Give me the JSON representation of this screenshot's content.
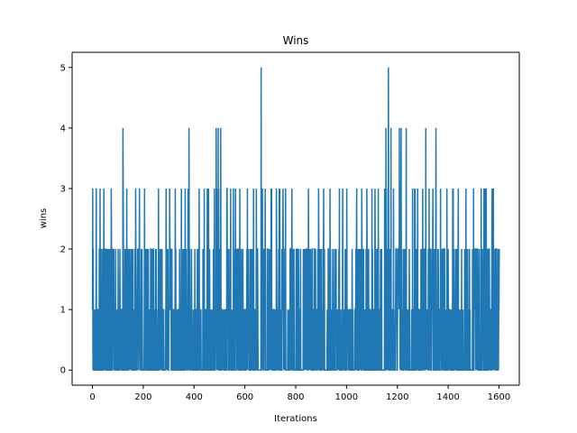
{
  "chart_data": {
    "type": "line",
    "title": "Wins",
    "xlabel": "Iterations",
    "ylabel": "wins",
    "xlim": [
      -80,
      1680
    ],
    "ylim": [
      -0.25,
      5.25
    ],
    "x_ticks": [
      0,
      200,
      400,
      600,
      800,
      1000,
      1200,
      1400,
      1600
    ],
    "y_ticks": [
      0,
      1,
      2,
      3,
      4,
      5
    ],
    "grid": false,
    "legend": "none",
    "series": [
      {
        "color": "#1f77b4",
        "x": [
          0,
          1601
        ],
        "y_range": [
          0,
          5
        ],
        "peaks": [
          {
            "x": 1,
            "y": 3
          },
          {
            "x": 3,
            "y": 2
          },
          {
            "x": 15,
            "y": 3
          },
          {
            "x": 30,
            "y": 3
          },
          {
            "x": 45,
            "y": 3
          },
          {
            "x": 120,
            "y": 4
          },
          {
            "x": 135,
            "y": 3
          },
          {
            "x": 170,
            "y": 3
          },
          {
            "x": 185,
            "y": 3
          },
          {
            "x": 205,
            "y": 3
          },
          {
            "x": 290,
            "y": 3
          },
          {
            "x": 350,
            "y": 3
          },
          {
            "x": 365,
            "y": 3
          },
          {
            "x": 380,
            "y": 4
          },
          {
            "x": 420,
            "y": 3
          },
          {
            "x": 440,
            "y": 3
          },
          {
            "x": 480,
            "y": 3
          },
          {
            "x": 487,
            "y": 4
          },
          {
            "x": 495,
            "y": 4
          },
          {
            "x": 505,
            "y": 4
          },
          {
            "x": 530,
            "y": 3
          },
          {
            "x": 555,
            "y": 3
          },
          {
            "x": 580,
            "y": 3
          },
          {
            "x": 610,
            "y": 3
          },
          {
            "x": 645,
            "y": 3
          },
          {
            "x": 664,
            "y": 5
          },
          {
            "x": 680,
            "y": 3
          },
          {
            "x": 705,
            "y": 3
          },
          {
            "x": 735,
            "y": 3
          },
          {
            "x": 760,
            "y": 3
          },
          {
            "x": 785,
            "y": 3
          },
          {
            "x": 850,
            "y": 3
          },
          {
            "x": 890,
            "y": 3
          },
          {
            "x": 910,
            "y": 3
          },
          {
            "x": 935,
            "y": 3
          },
          {
            "x": 985,
            "y": 3
          },
          {
            "x": 1040,
            "y": 3
          },
          {
            "x": 1060,
            "y": 3
          },
          {
            "x": 1080,
            "y": 3
          },
          {
            "x": 1100,
            "y": 3
          },
          {
            "x": 1125,
            "y": 3
          },
          {
            "x": 1150,
            "y": 3
          },
          {
            "x": 1155,
            "y": 4
          },
          {
            "x": 1165,
            "y": 5
          },
          {
            "x": 1175,
            "y": 4
          },
          {
            "x": 1185,
            "y": 3
          },
          {
            "x": 1208,
            "y": 4
          },
          {
            "x": 1215,
            "y": 4
          },
          {
            "x": 1235,
            "y": 4
          },
          {
            "x": 1260,
            "y": 3
          },
          {
            "x": 1280,
            "y": 3
          },
          {
            "x": 1300,
            "y": 3
          },
          {
            "x": 1312,
            "y": 4
          },
          {
            "x": 1325,
            "y": 3
          },
          {
            "x": 1340,
            "y": 3
          },
          {
            "x": 1352,
            "y": 4
          },
          {
            "x": 1370,
            "y": 3
          },
          {
            "x": 1395,
            "y": 3
          },
          {
            "x": 1420,
            "y": 3
          },
          {
            "x": 1440,
            "y": 3
          },
          {
            "x": 1470,
            "y": 3
          },
          {
            "x": 1500,
            "y": 3
          },
          {
            "x": 1530,
            "y": 3
          },
          {
            "x": 1545,
            "y": 3
          },
          {
            "x": 1560,
            "y": 2
          },
          {
            "x": 1590,
            "y": 2
          },
          {
            "x": 1601,
            "y": 2
          }
        ]
      }
    ]
  }
}
